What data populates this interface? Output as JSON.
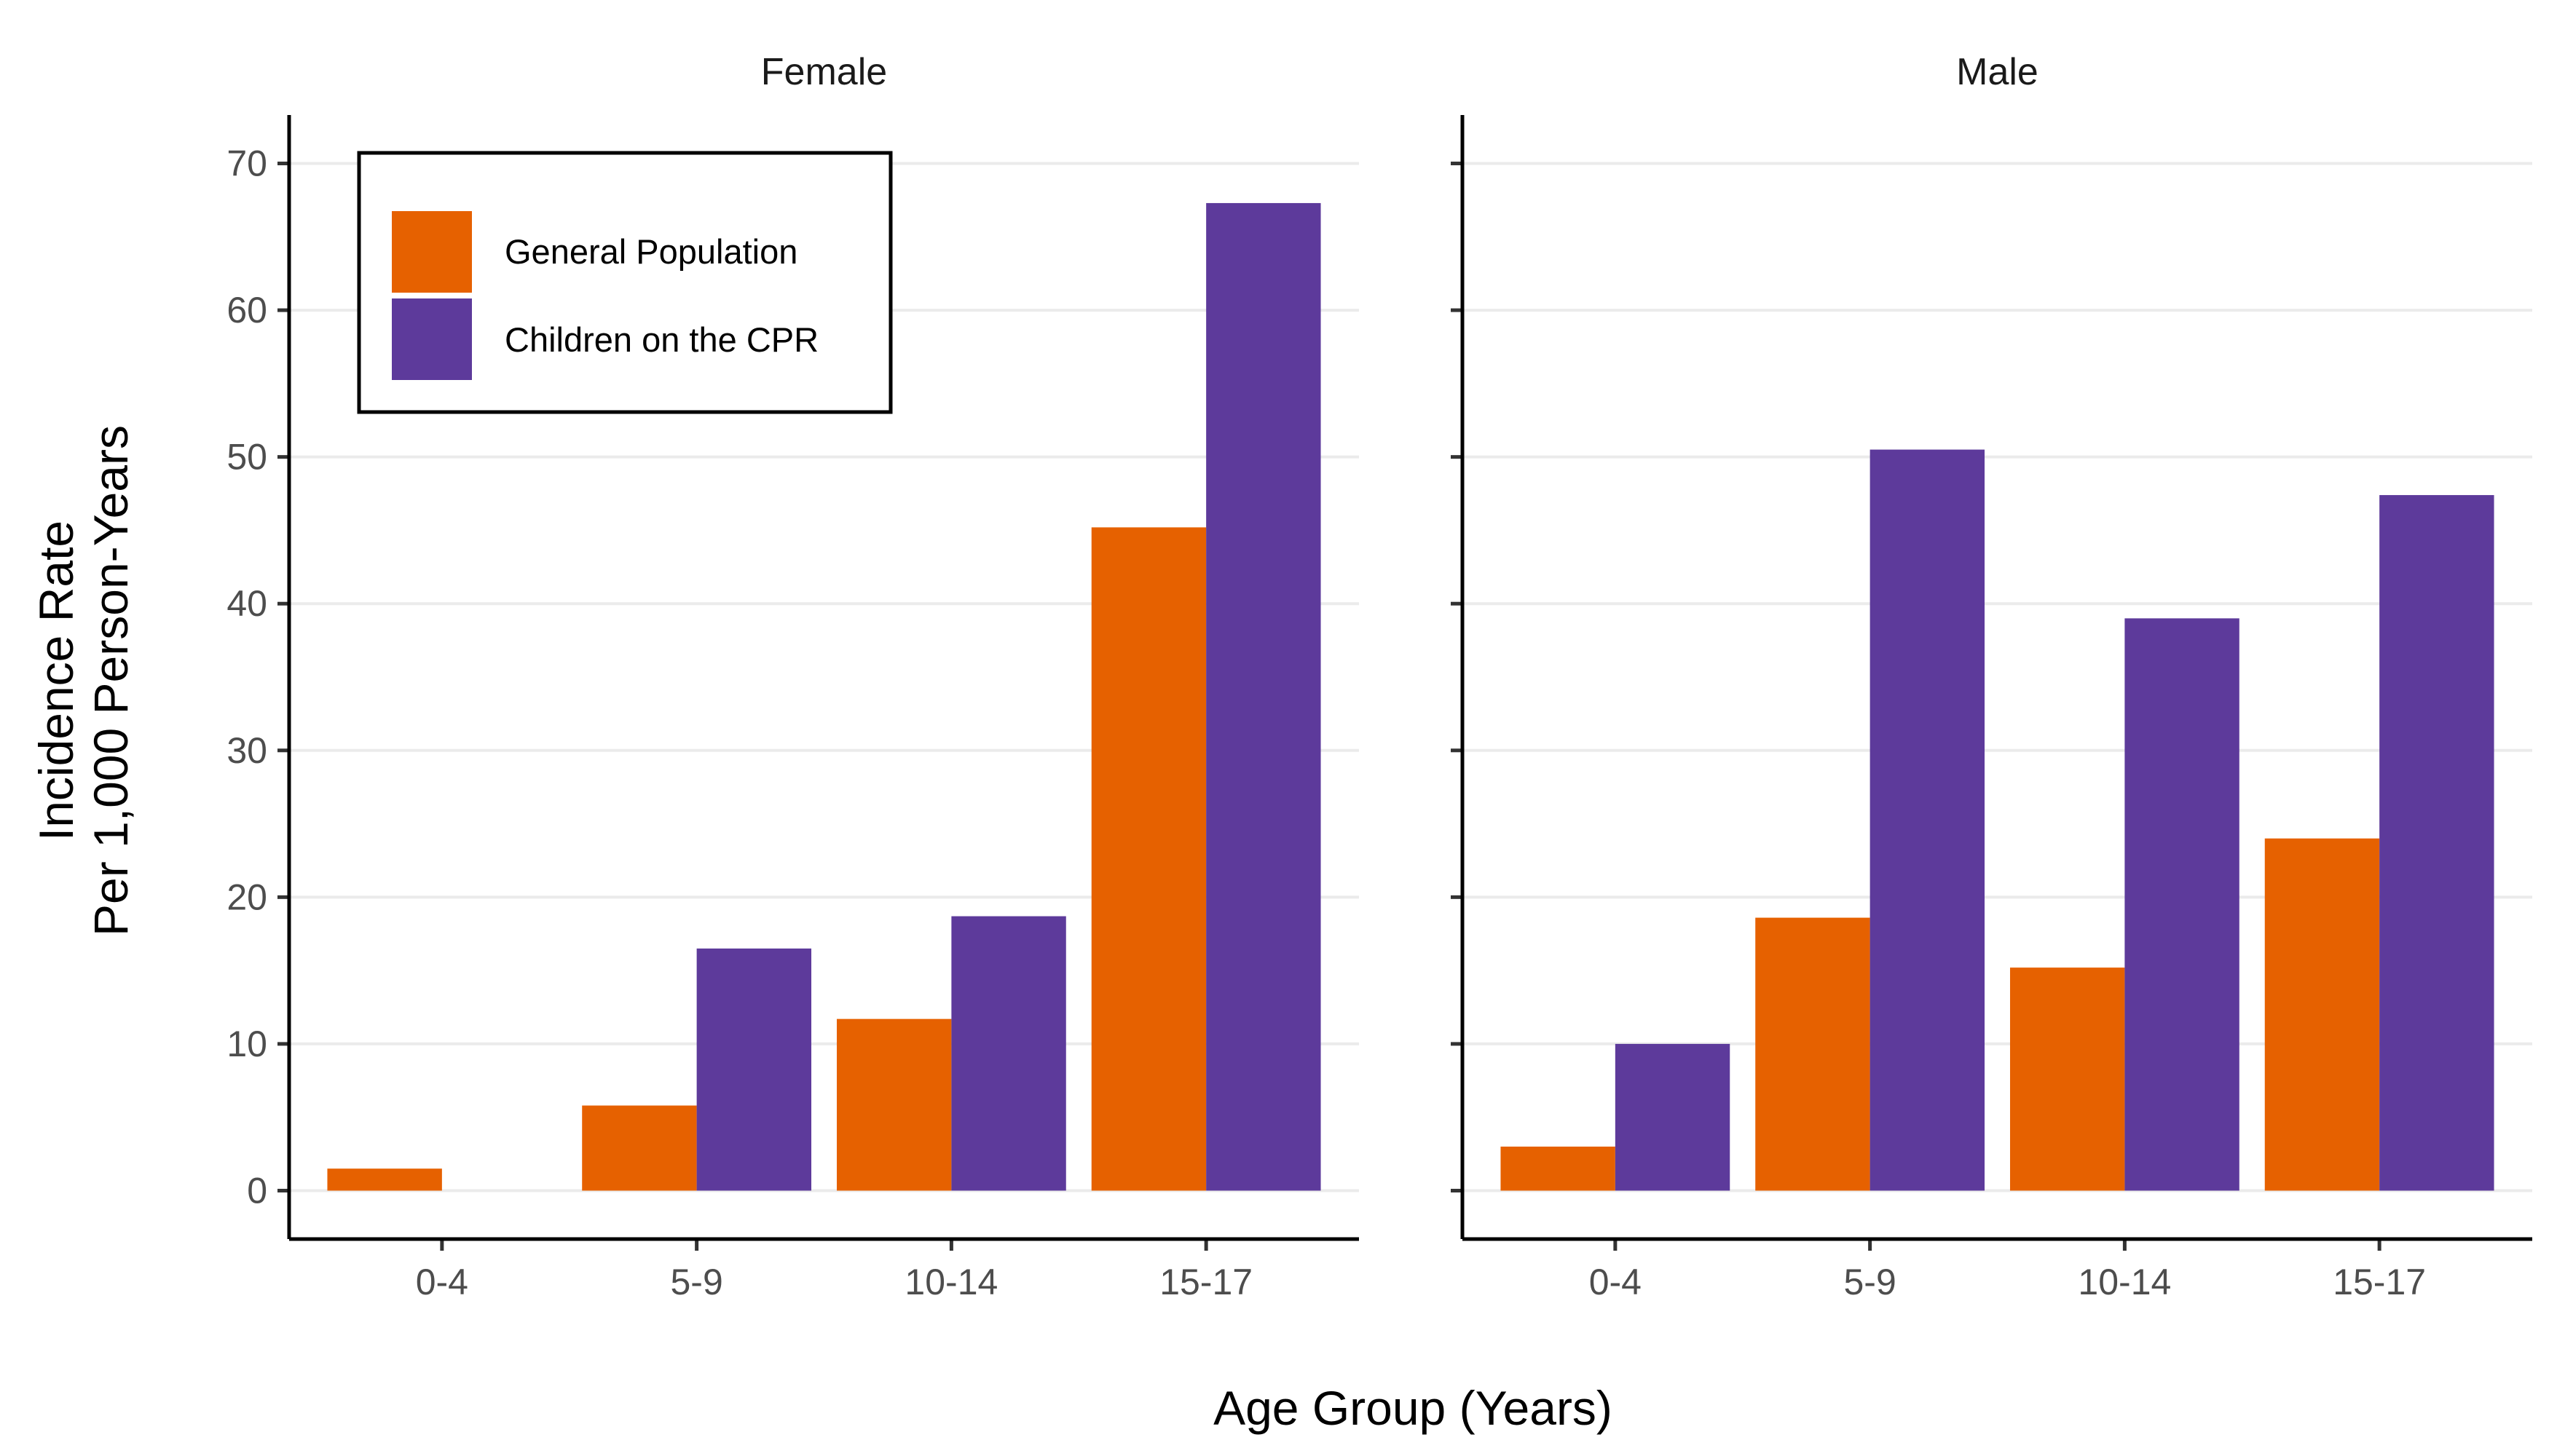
{
  "chart_data": {
    "type": "bar",
    "xlabel": "Age Group (Years)",
    "ylabel_lines": [
      "Incidence Rate",
      "Per 1,000 Person-Years"
    ],
    "categories": [
      "0-4",
      "5-9",
      "10-14",
      "15-17"
    ],
    "ylim": [
      -3.3,
      73.3
    ],
    "yticks": [
      0,
      10,
      20,
      30,
      40,
      50,
      60,
      70
    ],
    "grid": "horizontal",
    "legend_position": "top-left",
    "colors": {
      "General Population": "#e66100",
      "Children on the CPR": "#5d3a9b"
    },
    "series_names": [
      "General Population",
      "Children on the CPR"
    ],
    "panels": [
      {
        "title": "Female",
        "series": [
          {
            "name": "General Population",
            "values": [
              1.5,
              5.8,
              11.7,
              45.2
            ]
          },
          {
            "name": "Children on the CPR",
            "values": [
              0,
              16.5,
              18.7,
              67.3
            ]
          }
        ]
      },
      {
        "title": "Male",
        "series": [
          {
            "name": "General Population",
            "values": [
              3.0,
              18.6,
              15.2,
              24.0
            ]
          },
          {
            "name": "Children on the CPR",
            "values": [
              10.0,
              50.5,
              39.0,
              47.4
            ]
          }
        ]
      }
    ]
  }
}
